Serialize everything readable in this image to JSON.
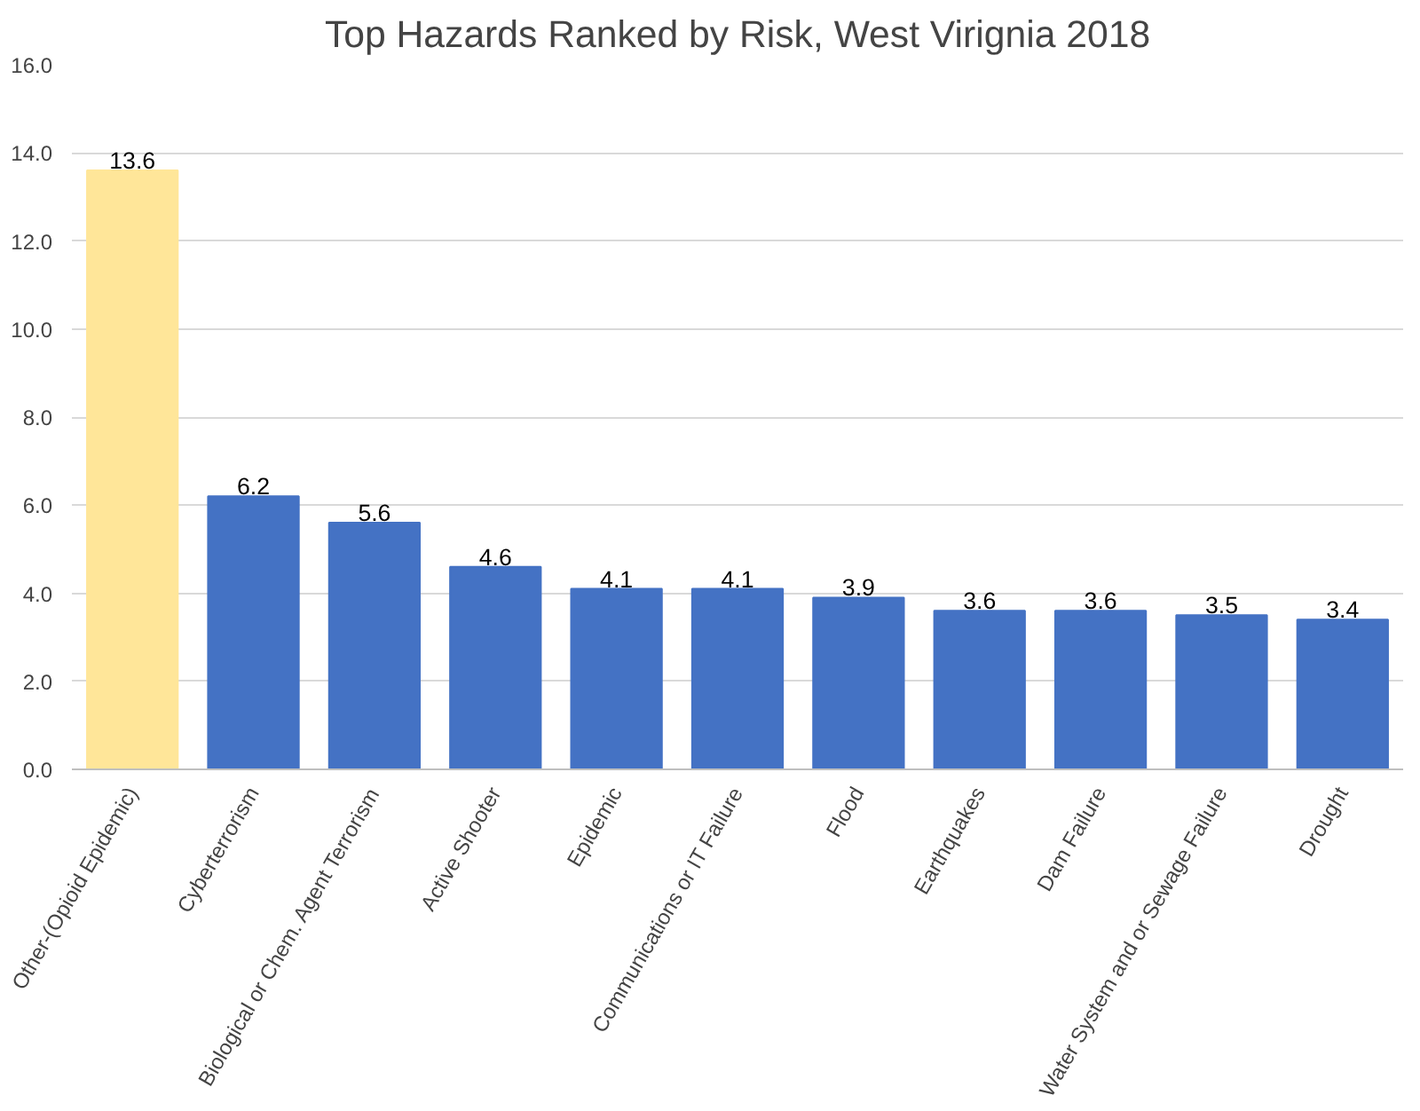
{
  "chart_data": {
    "type": "bar",
    "title": "Top Hazards Ranked by Risk, West Virignia 2018",
    "categories": [
      "Other-(Opioid Epidemic)",
      "Cyberterrorism",
      "Biological or Chem. Agent Terrorism",
      "Active Shooter",
      "Epidemic",
      "Communications or IT Failure",
      "Flood",
      "Earthquakes",
      "Dam Failure",
      "Water System and or Sewage Failure",
      "Drought"
    ],
    "values": [
      13.6,
      6.2,
      5.6,
      4.6,
      4.1,
      4.1,
      3.9,
      3.6,
      3.6,
      3.5,
      3.4
    ],
    "colors": [
      "#ffe699",
      "#4472c4",
      "#4472c4",
      "#4472c4",
      "#4472c4",
      "#4472c4",
      "#4472c4",
      "#4472c4",
      "#4472c4",
      "#4472c4",
      "#4472c4"
    ],
    "ylim": [
      0,
      16
    ],
    "yticks": [
      {
        "value": 0,
        "label": "0.0"
      },
      {
        "value": 2,
        "label": "2.0"
      },
      {
        "value": 4,
        "label": "4.0"
      },
      {
        "value": 6,
        "label": "6.0"
      },
      {
        "value": 8,
        "label": "8.0"
      },
      {
        "value": 10,
        "label": "10.0"
      },
      {
        "value": 12,
        "label": "12.0"
      },
      {
        "value": 14,
        "label": "14.0"
      },
      {
        "value": 16,
        "label": "16.0"
      }
    ],
    "grid": "y",
    "data_labels": true
  }
}
